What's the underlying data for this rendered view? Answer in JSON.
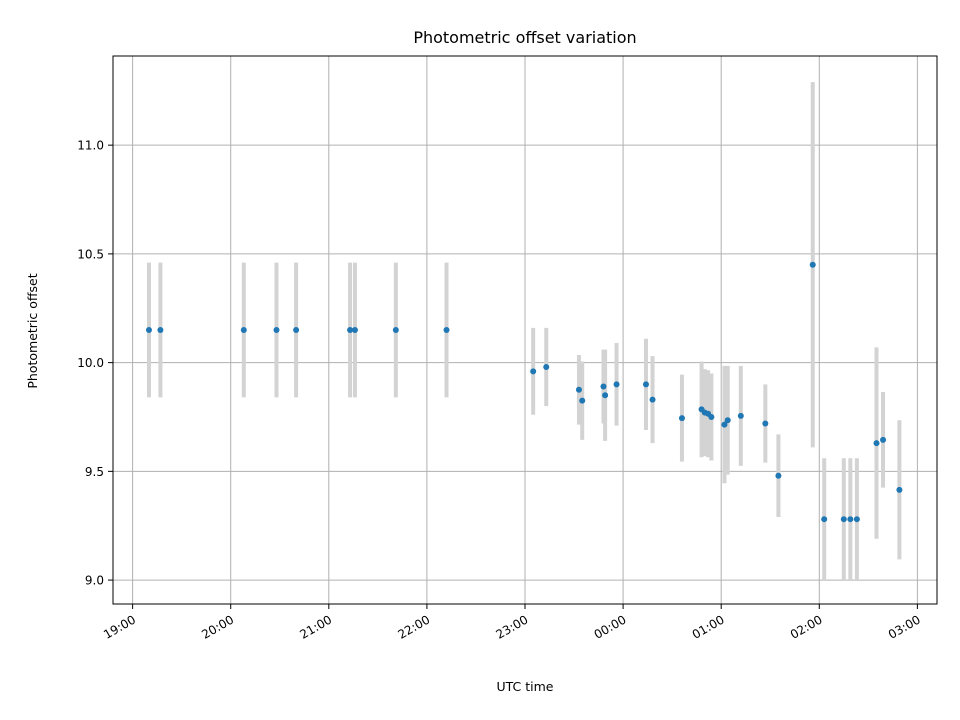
{
  "chart_data": {
    "type": "scatter",
    "title": "Photometric offset variation",
    "xlabel": "UTC time",
    "ylabel": "Photometric offset",
    "grid": true,
    "colors": {
      "point": "#1f77b4",
      "errorbar": "#d3d3d3"
    },
    "xlim": [
      "18:48",
      "03:12"
    ],
    "ylim": [
      8.89,
      11.41
    ],
    "x_ticks": [
      "19:00",
      "20:00",
      "21:00",
      "22:00",
      "23:00",
      "00:00",
      "01:00",
      "02:00",
      "03:00"
    ],
    "y_ticks": [
      "9.0",
      "9.5",
      "10.0",
      "10.5",
      "11.0"
    ],
    "points": [
      {
        "t": "19:10",
        "y": 10.15,
        "err": 0.31
      },
      {
        "t": "19:17",
        "y": 10.15,
        "err": 0.31
      },
      {
        "t": "20:08",
        "y": 10.15,
        "err": 0.31
      },
      {
        "t": "20:28",
        "y": 10.15,
        "err": 0.31
      },
      {
        "t": "20:40",
        "y": 10.15,
        "err": 0.31
      },
      {
        "t": "21:13",
        "y": 10.15,
        "err": 0.31
      },
      {
        "t": "21:16",
        "y": 10.15,
        "err": 0.31
      },
      {
        "t": "21:41",
        "y": 10.15,
        "err": 0.31
      },
      {
        "t": "22:12",
        "y": 10.15,
        "err": 0.31
      },
      {
        "t": "23:05",
        "y": 9.96,
        "err": 0.2
      },
      {
        "t": "23:13",
        "y": 9.98,
        "err": 0.18
      },
      {
        "t": "23:33",
        "y": 9.875,
        "err": 0.16
      },
      {
        "t": "23:35",
        "y": 9.825,
        "err": 0.18
      },
      {
        "t": "23:48",
        "y": 9.89,
        "err": 0.17
      },
      {
        "t": "23:49",
        "y": 9.85,
        "err": 0.21
      },
      {
        "t": "23:56",
        "y": 9.9,
        "err": 0.19
      },
      {
        "t": "00:14",
        "y": 9.9,
        "err": 0.21
      },
      {
        "t": "00:18",
        "y": 9.83,
        "err": 0.2
      },
      {
        "t": "00:36",
        "y": 9.745,
        "err": 0.2
      },
      {
        "t": "00:48",
        "y": 9.785,
        "err": 0.22
      },
      {
        "t": "00:50",
        "y": 9.77,
        "err": 0.2
      },
      {
        "t": "00:52",
        "y": 9.765,
        "err": 0.2
      },
      {
        "t": "00:54",
        "y": 9.75,
        "err": 0.2
      },
      {
        "t": "01:02",
        "y": 9.715,
        "err": 0.27
      },
      {
        "t": "01:04",
        "y": 9.735,
        "err": 0.25
      },
      {
        "t": "01:12",
        "y": 9.755,
        "err": 0.23
      },
      {
        "t": "01:27",
        "y": 9.72,
        "err": 0.18
      },
      {
        "t": "01:35",
        "y": 9.48,
        "err": 0.19
      },
      {
        "t": "01:56",
        "y": 10.45,
        "err": 0.84
      },
      {
        "t": "02:03",
        "y": 9.28,
        "err": 0.28
      },
      {
        "t": "02:15",
        "y": 9.28,
        "err": 0.28
      },
      {
        "t": "02:19",
        "y": 9.28,
        "err": 0.28
      },
      {
        "t": "02:23",
        "y": 9.28,
        "err": 0.28
      },
      {
        "t": "02:35",
        "y": 9.63,
        "err": 0.44
      },
      {
        "t": "02:39",
        "y": 9.645,
        "err": 0.22
      },
      {
        "t": "02:49",
        "y": 9.415,
        "err": 0.32
      }
    ]
  }
}
